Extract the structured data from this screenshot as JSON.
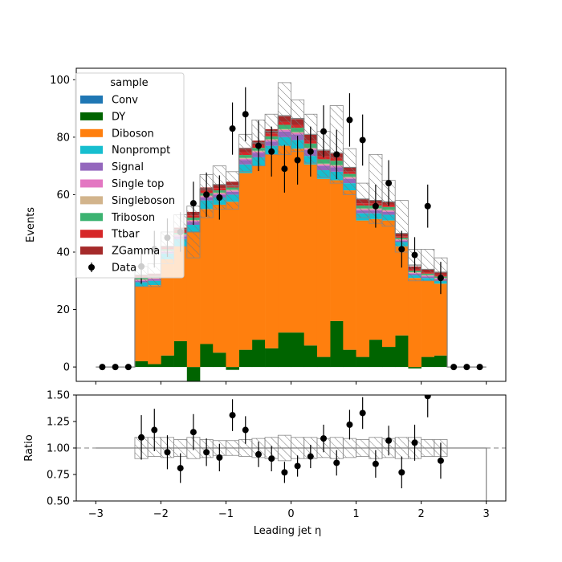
{
  "chart_data": [
    {
      "type": "stacked-histogram",
      "ylabel": "Events",
      "ylim": [
        -5,
        104
      ],
      "xlim": [
        -3.3,
        3.3
      ],
      "yticks": [
        0,
        20,
        40,
        60,
        80,
        100
      ],
      "legend": {
        "title": "sample",
        "placement": "top-left",
        "entries": [
          "Conv",
          "DY",
          "Diboson",
          "Nonprompt",
          "Signal",
          "Single top",
          "Singleboson",
          "Triboson",
          "Ttbar",
          "ZGamma",
          "Data"
        ]
      },
      "bin_edges": [
        -2.4,
        -2.2,
        -2.0,
        -1.8,
        -1.6,
        -1.4,
        -1.2,
        -1.0,
        -0.8,
        -0.6,
        -0.4,
        -0.2,
        0.0,
        0.2,
        0.4,
        0.6,
        0.8,
        1.0,
        1.2,
        1.4,
        1.6,
        1.8,
        2.0,
        2.2,
        2.4
      ],
      "series": [
        {
          "name": "DY",
          "color": "#006400",
          "values": [
            2,
            1,
            4,
            9,
            -6,
            8,
            5,
            -1,
            6,
            9.5,
            6.5,
            12,
            12,
            7.5,
            3.5,
            16,
            6,
            3.5,
            9.5,
            7,
            11,
            -0.5,
            3.5,
            4
          ]
        },
        {
          "name": "Diboson",
          "color": "#ff7f0e",
          "values": [
            26,
            27.5,
            33.5,
            33,
            47,
            47,
            51.5,
            57.5,
            61.5,
            60.5,
            67.5,
            65,
            64,
            63,
            62,
            49,
            55.5,
            47.5,
            42,
            44,
            31,
            31,
            26.5,
            25
          ]
        },
        {
          "name": "Nonprompt",
          "color": "#17becf",
          "values": [
            1.5,
            1.5,
            2,
            2.5,
            2.5,
            3,
            2.5,
            2.5,
            3,
            3,
            3,
            3,
            3,
            3,
            3,
            3,
            2.5,
            2.5,
            2,
            2,
            1.5,
            1,
            1,
            1
          ]
        },
        {
          "name": "Signal",
          "color": "#9467bd",
          "values": [
            0.5,
            0.5,
            0.5,
            1,
            1,
            1,
            1,
            1,
            1.5,
            1.5,
            1.5,
            2,
            2,
            2,
            1.5,
            1.5,
            1.5,
            1,
            1,
            1,
            0.5,
            0.5,
            0.5,
            0.5
          ]
        },
        {
          "name": "Single top",
          "color": "#e377c2",
          "values": [
            0.3,
            0.3,
            0.3,
            0.4,
            0.4,
            0.4,
            0.4,
            0.4,
            0.5,
            0.5,
            0.5,
            0.5,
            0.5,
            0.5,
            0.5,
            0.5,
            0.4,
            0.4,
            0.4,
            0.4,
            0.3,
            0.3,
            0.3,
            0.3
          ]
        },
        {
          "name": "Singleboson",
          "color": "#d2b48c",
          "values": [
            0.2,
            0.2,
            0.2,
            0.3,
            0.3,
            0.3,
            0.3,
            0.3,
            0.3,
            0.3,
            0.3,
            0.3,
            0.3,
            0.3,
            0.3,
            0.3,
            0.3,
            0.3,
            0.3,
            0.3,
            0.2,
            0.2,
            0.2,
            0.2
          ]
        },
        {
          "name": "Triboson",
          "color": "#3cb371",
          "values": [
            0.5,
            0.5,
            0.5,
            0.5,
            0.8,
            0.8,
            0.8,
            0.8,
            1,
            1,
            1,
            1.5,
            1.5,
            1.5,
            1.5,
            1.5,
            1,
            1,
            1,
            1,
            0.5,
            0.5,
            0.5,
            0.5
          ]
        },
        {
          "name": "Ttbar",
          "color": "#d62728",
          "values": [
            0.5,
            0.5,
            0.5,
            0.8,
            0.8,
            0.8,
            0.8,
            0.8,
            1,
            1,
            1,
            1,
            1,
            1,
            1,
            1,
            0.8,
            0.8,
            0.8,
            0.8,
            0.5,
            0.5,
            0.5,
            0.5
          ]
        },
        {
          "name": "ZGamma",
          "color": "#a52a2a",
          "values": [
            0.5,
            0.5,
            0.5,
            1,
            1.2,
            1.2,
            1.2,
            1.2,
            1.5,
            1.5,
            1.5,
            2,
            2,
            2,
            2,
            1.5,
            1.5,
            1.5,
            1,
            1,
            1,
            1,
            1,
            1
          ]
        }
      ],
      "total_mc": [
        32,
        32,
        42,
        48,
        47,
        62,
        63.5,
        63,
        76,
        78,
        82,
        87.5,
        86.5,
        81,
        75.5,
        74.5,
        69.5,
        58.5,
        58,
        57.5,
        46.5,
        35.5,
        34,
        33
      ],
      "uncertainty_band": {
        "lower": [
          28,
          28,
          36,
          42,
          38,
          52,
          55,
          55,
          68,
          70,
          74,
          74,
          75,
          71,
          66,
          64,
          60,
          52,
          50,
          49,
          40,
          30,
          30,
          30
        ],
        "upper": [
          35,
          36,
          47,
          53,
          56,
          67,
          70,
          68,
          81,
          86,
          88,
          99,
          93,
          88,
          82,
          91,
          76,
          64,
          74,
          65,
          58,
          41,
          41,
          38
        ]
      },
      "data_points": {
        "name": "Data",
        "x": [
          -2.9,
          -2.7,
          -2.5,
          -2.3,
          -2.1,
          -1.9,
          -1.7,
          -1.5,
          -1.3,
          -1.1,
          -0.9,
          -0.7,
          -0.5,
          -0.3,
          -0.1,
          0.1,
          0.3,
          0.5,
          0.7,
          0.9,
          1.1,
          1.3,
          1.5,
          1.7,
          1.9,
          2.1,
          2.3,
          2.5,
          2.7,
          2.9
        ],
        "y": [
          0,
          0,
          0,
          35,
          41,
          45,
          47,
          57,
          60,
          59,
          83,
          88,
          77,
          75,
          69,
          72,
          75,
          82,
          74,
          86,
          79,
          56,
          64,
          41,
          39,
          56,
          31,
          0,
          0,
          0
        ],
        "err": [
          0,
          0,
          0,
          6,
          6.4,
          6.7,
          6.9,
          7.5,
          7.7,
          7.7,
          9.1,
          9.4,
          8.8,
          8.7,
          8.3,
          8.5,
          8.7,
          9.1,
          8.6,
          9.3,
          8.9,
          7.5,
          8,
          6.4,
          6.2,
          7.5,
          5.6,
          0,
          0,
          0
        ]
      }
    },
    {
      "type": "ratio",
      "ylabel": "Ratio",
      "xlabel": "Leading jet  η",
      "ylim": [
        0.5,
        1.5
      ],
      "xlim": [
        -3.3,
        3.3
      ],
      "yticks": [
        "0.50",
        "0.75",
        "1.00",
        "1.25",
        "1.50"
      ],
      "xticks": [
        "−3",
        "−2",
        "−1",
        "0",
        "1",
        "2",
        "3"
      ],
      "band_lower": [
        0.9,
        0.92,
        0.91,
        0.92,
        0.9,
        0.91,
        0.93,
        0.93,
        0.92,
        0.91,
        0.9,
        0.88,
        0.9,
        0.9,
        0.91,
        0.9,
        0.91,
        0.92,
        0.9,
        0.91,
        0.9,
        0.9,
        0.92,
        0.92
      ],
      "band_upper": [
        1.1,
        1.1,
        1.1,
        1.08,
        1.1,
        1.08,
        1.07,
        1.07,
        1.08,
        1.09,
        1.1,
        1.12,
        1.1,
        1.1,
        1.09,
        1.1,
        1.09,
        1.08,
        1.1,
        1.09,
        1.1,
        1.1,
        1.08,
        1.08
      ],
      "points": {
        "x": [
          -2.3,
          -2.1,
          -1.9,
          -1.7,
          -1.5,
          -1.3,
          -1.1,
          -0.9,
          -0.7,
          -0.5,
          -0.3,
          -0.1,
          0.1,
          0.3,
          0.5,
          0.7,
          0.9,
          1.1,
          1.3,
          1.5,
          1.7,
          1.9,
          2.1,
          2.3
        ],
        "y": [
          1.1,
          1.17,
          0.96,
          0.81,
          1.15,
          0.96,
          0.91,
          1.31,
          1.17,
          0.94,
          0.9,
          0.77,
          0.83,
          0.92,
          1.09,
          0.86,
          1.22,
          1.33,
          0.85,
          1.07,
          0.77,
          1.05,
          1.49,
          0.88
        ],
        "err": [
          0.21,
          0.2,
          0.16,
          0.14,
          0.17,
          0.13,
          0.13,
          0.15,
          0.13,
          0.12,
          0.12,
          0.1,
          0.1,
          0.11,
          0.13,
          0.12,
          0.14,
          0.15,
          0.13,
          0.14,
          0.15,
          0.17,
          0.2,
          0.17
        ]
      }
    }
  ]
}
